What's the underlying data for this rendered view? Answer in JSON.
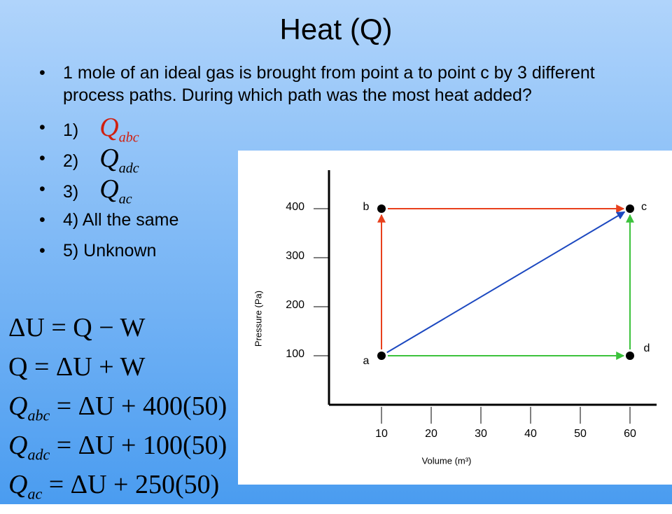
{
  "slide": {
    "title": "Heat (Q)",
    "question": "1 mole of an ideal gas is brought from point a to point c by 3 different process paths.  During which path was the most heat added?",
    "options": [
      {
        "label": "1)",
        "symbol": "Q",
        "subscript": "abc"
      },
      {
        "label": "2)",
        "symbol": "Q",
        "subscript": "adc"
      },
      {
        "label": "3)",
        "symbol": "Q",
        "subscript": "ac"
      },
      {
        "label": "4) All the same"
      },
      {
        "label": "5) Unknown"
      }
    ],
    "equations": [
      {
        "text": "ΔU = Q − W"
      },
      {
        "text": "Q = ΔU + W"
      },
      {
        "symbol": "Q",
        "subscript": "abc",
        "text": "= ΔU + 400(50)"
      },
      {
        "symbol": "Q",
        "subscript": "adc",
        "text": "= ΔU + 100(50)"
      },
      {
        "symbol": "Q",
        "subscript": "ac",
        "text": "= ΔU + 250(50)"
      }
    ]
  },
  "pv_diagram": {
    "xlabel": "Volume (m³)",
    "ylabel": "Pressure (Pa)",
    "xticks": [
      10,
      20,
      30,
      40,
      50,
      60
    ],
    "yticks": [
      100,
      200,
      300,
      400
    ],
    "points": [
      {
        "label": "a",
        "x": 10,
        "y": 100
      },
      {
        "label": "b",
        "x": 10,
        "y": 400
      },
      {
        "label": "c",
        "x": 60,
        "y": 400
      },
      {
        "label": "d",
        "x": 60,
        "y": 100
      }
    ],
    "path_colors": [
      "#e8401c",
      "#3cc23c",
      "#1c48c0"
    ]
  }
}
